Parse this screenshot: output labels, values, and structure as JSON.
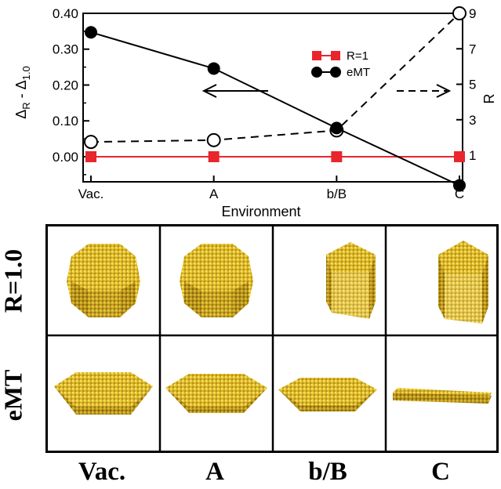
{
  "chart_data": {
    "type": "line",
    "categories": [
      "Vac.",
      "A",
      "b/B",
      "C"
    ],
    "xlabel": "Environment",
    "ylabel_main": "Δ",
    "ylabel_sub1": "R",
    "ylabel_mid": " - Δ",
    "ylabel_sub2": "1.0",
    "ylabel_right": "R",
    "ylim": [
      -0.07,
      0.4
    ],
    "yticks": [
      "0.00",
      "0.10",
      "0.20",
      "0.30",
      "0.40"
    ],
    "ylim_right": [
      -0.5,
      9
    ],
    "yticks_right": [
      "1",
      "3",
      "5",
      "7",
      "9"
    ],
    "series": [
      {
        "name": "R=1",
        "axis": "left",
        "style": "solid",
        "color": "#e8262c",
        "marker": "square",
        "values": [
          0.0,
          0.0,
          0.0,
          0.0
        ]
      },
      {
        "name": "eMT",
        "axis": "left",
        "style": "solid",
        "color": "#000000",
        "marker": "filled-circle",
        "values": [
          0.347,
          0.246,
          0.08,
          -0.08
        ]
      },
      {
        "axis": "right",
        "style": "dashed",
        "color": "#000000",
        "marker": "open-circle",
        "values": [
          1.75,
          1.85,
          2.4,
          9.0
        ]
      }
    ],
    "legend_position": "top-right",
    "annotations": [
      "left-arrow",
      "dashed-right-arrow"
    ]
  },
  "panel": {
    "row_labels": [
      "R=1.0",
      "eMT"
    ],
    "col_labels": [
      "Vac.",
      "A",
      "b/B",
      "C"
    ],
    "particle_color": "#e8c22a",
    "particle_shadow": "#a8861a",
    "shapes": [
      [
        "truncated-octahedron",
        "truncated-octahedron",
        "pentagonal-prism",
        "pentagonal-prism"
      ],
      [
        "flat-oblate",
        "flat-oblate",
        "flat-oblate-small",
        "rod"
      ]
    ]
  }
}
